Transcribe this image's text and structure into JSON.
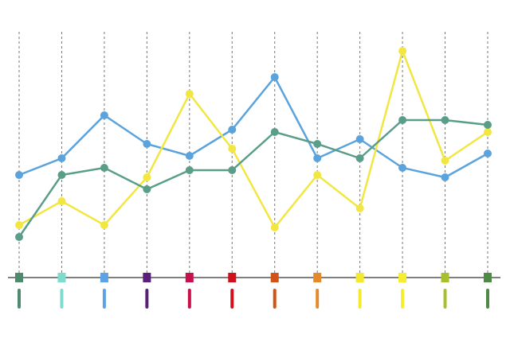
{
  "chart_data": {
    "type": "line",
    "categories": [
      null,
      null,
      null,
      null,
      null,
      null,
      null,
      null,
      null,
      null,
      null,
      null
    ],
    "category_colors": [
      "#4e8a6e",
      "#7ddccc",
      "#5ba3e6",
      "#5a1f7a",
      "#c8104a",
      "#d0101a",
      "#d05418",
      "#e48a2a",
      "#f5e92e",
      "#f5ee2e",
      "#a8c02e",
      "#4e8a46"
    ],
    "series": [
      {
        "color": "#5ba3dc",
        "values": [
          43,
          50,
          68,
          56,
          51,
          62,
          84,
          50,
          58,
          46,
          42,
          52
        ]
      },
      {
        "color": "#f2e641",
        "values": [
          22,
          32,
          22,
          42,
          77,
          54,
          21,
          43,
          29,
          95,
          49,
          61
        ]
      },
      {
        "color": "#5a9e8a",
        "values": [
          17,
          43,
          46,
          37,
          45,
          45,
          61,
          56,
          50,
          66,
          66,
          64
        ]
      }
    ],
    "ylim": [
      0,
      103
    ],
    "grid": true
  }
}
